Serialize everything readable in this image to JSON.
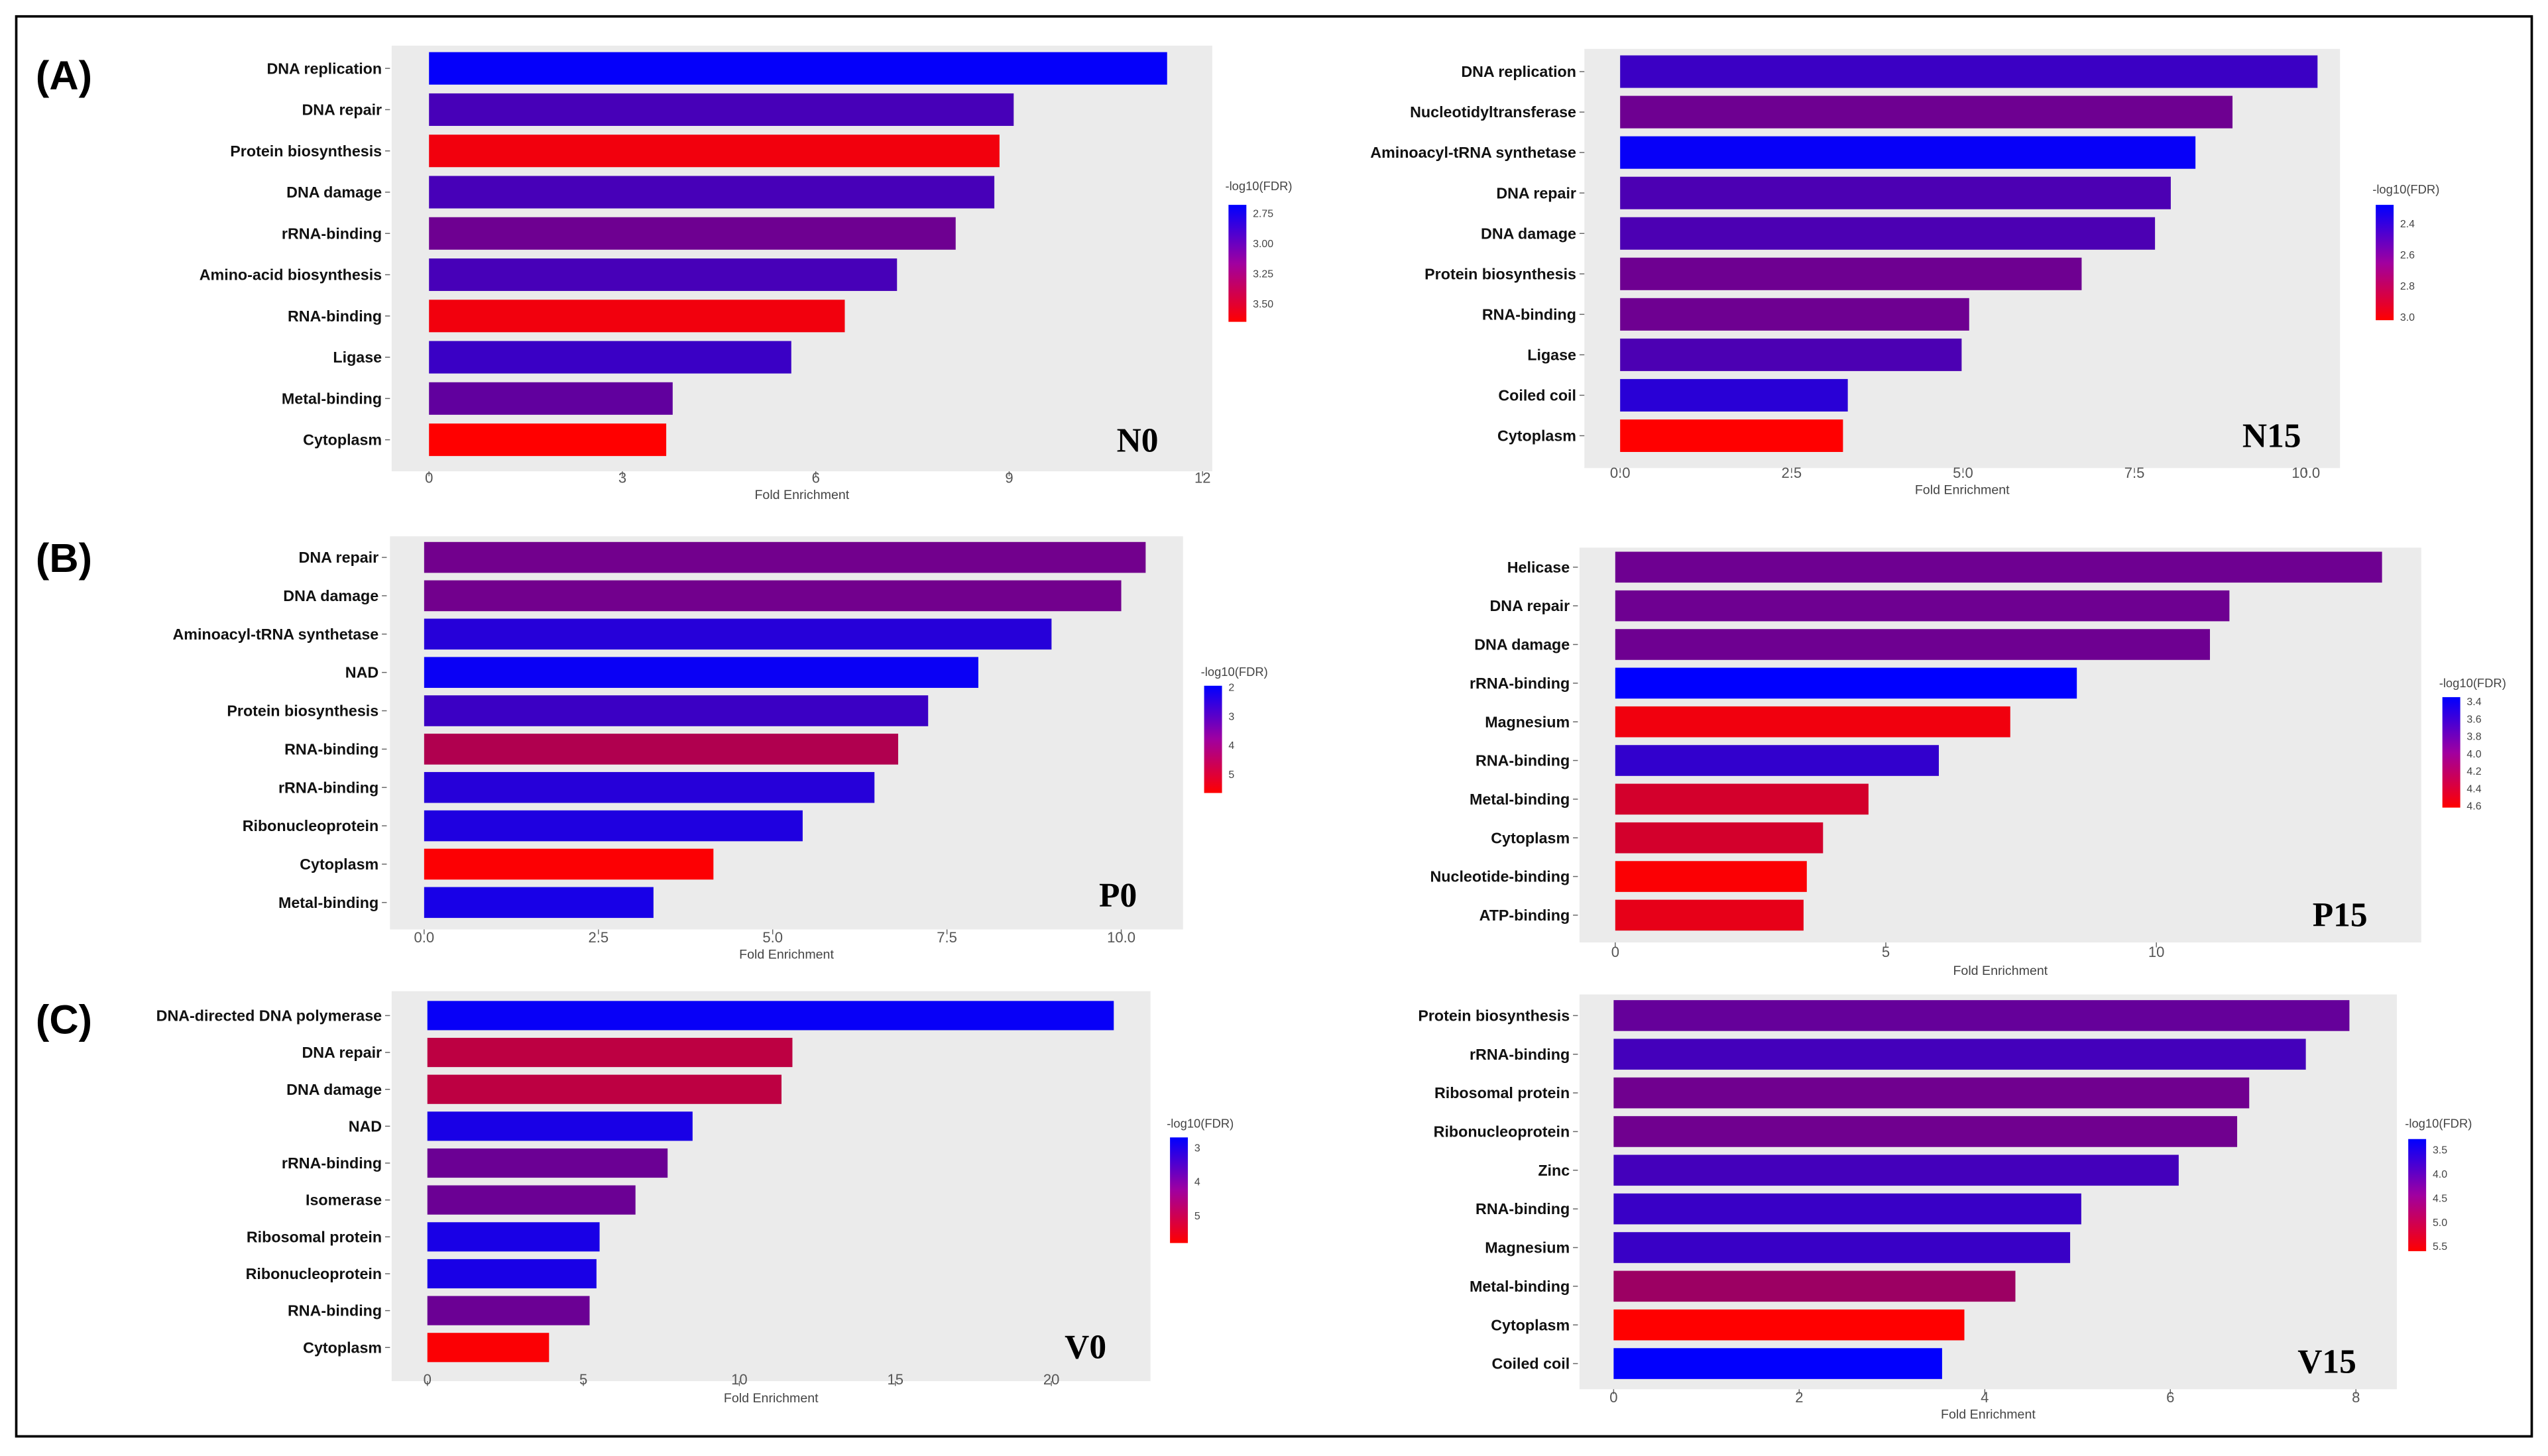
{
  "chart_data": [
    {
      "type": "bar",
      "orientation": "horizontal",
      "section": "(A)",
      "panel_label": "N0",
      "xlabel": "Fold Enrichment",
      "legend_title": "-log10(FDR)",
      "categories": [
        "DNA replication",
        "DNA repair",
        "Protein biosynthesis",
        "DNA damage",
        "rRNA-binding",
        "Amino-acid biosynthesis",
        "RNA-binding",
        "Ligase",
        "Metal-binding",
        "Cytoplasm"
      ],
      "values": [
        11.45,
        9.07,
        8.85,
        8.77,
        8.17,
        7.26,
        6.45,
        5.62,
        3.78,
        3.68
      ],
      "color_values": [
        2.7,
        2.95,
        3.6,
        2.95,
        3.1,
        2.95,
        3.6,
        2.9,
        3.05,
        3.65
      ],
      "xticks": [
        "0",
        "3",
        "6",
        "9",
        "12"
      ],
      "xtick_values": [
        0,
        3,
        6,
        9,
        12
      ],
      "xlim": [
        0,
        12
      ],
      "legend_ticks": [
        "2.75",
        "3.00",
        "3.25",
        "3.50"
      ],
      "legend_tick_values": [
        2.75,
        3.0,
        3.25,
        3.5
      ],
      "color_range": [
        2.68,
        3.65
      ]
    },
    {
      "type": "bar",
      "orientation": "horizontal",
      "section": "",
      "panel_label": "N15",
      "xlabel": "Fold Enrichment",
      "legend_title": "-log10(FDR)",
      "categories": [
        "DNA replication",
        "Nucleotidyltransferase",
        "Aminoacyl-tRNA synthetase",
        "DNA repair",
        "DNA damage",
        "Protein biosynthesis",
        "RNA-binding",
        "Ligase",
        "Coiled coil",
        "Cytoplasm"
      ],
      "values": [
        10.17,
        8.93,
        8.39,
        8.03,
        7.8,
        6.73,
        5.09,
        4.98,
        3.32,
        3.25
      ],
      "color_values": [
        2.45,
        2.6,
        2.3,
        2.5,
        2.5,
        2.6,
        2.6,
        2.5,
        2.4,
        3.02
      ],
      "xticks": [
        "0.0",
        "2.5",
        "5.0",
        "7.5",
        "10.0"
      ],
      "xtick_values": [
        0,
        2.5,
        5,
        7.5,
        10
      ],
      "xlim": [
        0,
        10.7
      ],
      "legend_ticks": [
        "2.4",
        "2.6",
        "2.8",
        "3.0"
      ],
      "legend_tick_values": [
        2.4,
        2.6,
        2.8,
        3.0
      ],
      "color_range": [
        2.28,
        3.02
      ]
    },
    {
      "type": "bar",
      "orientation": "horizontal",
      "section": "(B)",
      "panel_label": "P0",
      "xlabel": "Fold Enrichment",
      "legend_title": "-log10(FDR)",
      "categories": [
        "DNA repair",
        "DNA damage",
        "Aminoacyl-tRNA synthetase",
        "NAD",
        "Protein biosynthesis",
        "RNA-binding",
        "rRNA-binding",
        "Ribonucleoprotein",
        "Cytoplasm",
        "Metal-binding"
      ],
      "values": [
        10.35,
        10.0,
        9.0,
        7.95,
        7.23,
        6.8,
        6.46,
        5.43,
        4.15,
        3.29
      ],
      "color_values": [
        3.6,
        3.6,
        2.5,
        2.1,
        2.8,
        4.5,
        2.5,
        2.4,
        5.6,
        2.3
      ],
      "xticks": [
        "0.0",
        "2.5",
        "5.0",
        "7.5",
        "10.0"
      ],
      "xtick_values": [
        0,
        2.5,
        5,
        7.5,
        10
      ],
      "xlim": [
        0,
        10.8
      ],
      "legend_ticks": [
        "2",
        "3",
        "4",
        "5"
      ],
      "legend_tick_values": [
        2,
        3,
        4,
        5
      ],
      "color_range": [
        1.95,
        5.65
      ]
    },
    {
      "type": "bar",
      "orientation": "horizontal",
      "section": "",
      "panel_label": "P15",
      "xlabel": "Fold Enrichment",
      "legend_title": "-log10(FDR)",
      "categories": [
        "Helicase",
        "DNA repair",
        "DNA damage",
        "rRNA-binding",
        "Magnesium",
        "RNA-binding",
        "Metal-binding",
        "Cytoplasm",
        "Nucleotide-binding",
        "ATP-binding"
      ],
      "values": [
        14.17,
        11.35,
        10.99,
        8.53,
        7.3,
        5.98,
        4.68,
        3.84,
        3.54,
        3.48
      ],
      "color_values": [
        3.9,
        3.9,
        3.9,
        3.35,
        4.55,
        3.6,
        4.4,
        4.4,
        4.6,
        4.5
      ],
      "xticks": [
        "0",
        "5",
        "10"
      ],
      "xtick_values": [
        0,
        5,
        10
      ],
      "xlim": [
        0,
        14.9
      ],
      "legend_ticks": [
        "3.4",
        "3.6",
        "3.8",
        "4.0",
        "4.2",
        "4.4",
        "4.6"
      ],
      "legend_tick_values": [
        3.4,
        3.6,
        3.8,
        4.0,
        4.2,
        4.4,
        4.6
      ],
      "color_range": [
        3.35,
        4.62
      ]
    },
    {
      "type": "bar",
      "orientation": "horizontal",
      "section": "(C)",
      "panel_label": "V0",
      "xlabel": "Fold Enrichment",
      "legend_title": "-log10(FDR)",
      "categories": [
        "DNA-directed DNA polymerase",
        "DNA repair",
        "DNA damage",
        "NAD",
        "rRNA-binding",
        "Isomerase",
        "Ribosomal protein",
        "Ribonucleoprotein",
        "RNA-binding",
        "Cytoplasm"
      ],
      "values": [
        22.0,
        11.7,
        11.35,
        8.5,
        7.7,
        6.67,
        5.52,
        5.42,
        5.2,
        3.9
      ],
      "color_values": [
        2.8,
        5.0,
        5.0,
        3.0,
        4.0,
        4.0,
        3.0,
        3.0,
        4.0,
        5.75
      ],
      "xticks": [
        "0",
        "5",
        "10",
        "15",
        "20"
      ],
      "xtick_values": [
        0,
        5,
        10,
        15,
        20
      ],
      "xlim": [
        0,
        23.2
      ],
      "legend_ticks": [
        "3",
        "4",
        "5"
      ],
      "legend_tick_values": [
        3,
        4,
        5
      ],
      "color_range": [
        2.7,
        5.8
      ]
    },
    {
      "type": "bar",
      "orientation": "horizontal",
      "section": "",
      "panel_label": "V15",
      "xlabel": "Fold Enrichment",
      "legend_title": "-log10(FDR)",
      "categories": [
        "Protein biosynthesis",
        "rRNA-binding",
        "Ribosomal protein",
        "Ribonucleoprotein",
        "Zinc",
        "RNA-binding",
        "Magnesium",
        "Metal-binding",
        "Cytoplasm",
        "Coiled coil"
      ],
      "values": [
        7.93,
        7.46,
        6.85,
        6.72,
        6.09,
        5.04,
        4.92,
        4.33,
        3.78,
        3.54
      ],
      "color_values": [
        4.2,
        3.9,
        4.3,
        4.3,
        3.9,
        3.8,
        3.8,
        4.7,
        5.6,
        3.3
      ],
      "xticks": [
        "0",
        "2",
        "4",
        "6",
        "8"
      ],
      "xtick_values": [
        0,
        2,
        4,
        6,
        8
      ],
      "xlim": [
        0,
        8.4
      ],
      "legend_ticks": [
        "3.5",
        "4.0",
        "4.5",
        "5.0",
        "5.5"
      ],
      "legend_tick_values": [
        3.5,
        4.0,
        4.5,
        5.0,
        5.5
      ],
      "color_range": [
        3.28,
        5.6
      ]
    }
  ],
  "colors": {
    "low": "#0000ff",
    "high": "#ff0000",
    "panel_bg": "#ebebeb"
  }
}
